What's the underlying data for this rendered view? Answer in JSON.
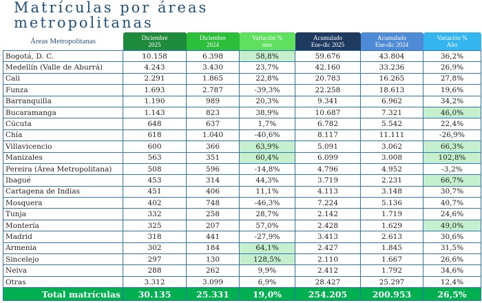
{
  "title_line1": "Matrículas por áreas",
  "title_line2": "metropolitanas",
  "headers": [
    {
      "l1": "Áreas Metropolitanas",
      "l2": "",
      "color": "#ffffff"
    },
    {
      "l1": "Diciembre",
      "l2": "2025",
      "color": "#1e8a3c"
    },
    {
      "l1": "Diciembre",
      "l2": "2024",
      "color": "#2bbf3a"
    },
    {
      "l1": "Variación %",
      "l2": "mes",
      "color": "#5fe05f"
    },
    {
      "l1": "Acumulado",
      "l2": "Ene-dic 2025",
      "color": "#1f3a5f"
    },
    {
      "l1": "Acumulado",
      "l2": "Ene-dic 2024",
      "color": "#4f8ad6"
    },
    {
      "l1": "Variación %",
      "l2": "Año",
      "color": "#33b5f0"
    }
  ],
  "rows": [
    [
      "Bogotá, D. C.",
      "10.158",
      "6.398",
      "58,8%",
      "59.676",
      "43.804",
      "36,2%"
    ],
    [
      "Medellín (Valle de Aburrá)",
      "4.243",
      "3.430",
      "23,7%",
      "42.160",
      "33.236",
      "26,9%"
    ],
    [
      "Cali",
      "2.291",
      "1.865",
      "22,8%",
      "20.783",
      "16.265",
      "27,8%"
    ],
    [
      "Funza",
      "1.693",
      "2.787",
      "-39,3%",
      "22.258",
      "18.613",
      "19,6%"
    ],
    [
      "Barranquilla",
      "1.190",
      "989",
      "20,3%",
      "9.341",
      "6.962",
      "34,2%"
    ],
    [
      "Bucaramanga",
      "1.143",
      "823",
      "38,9%",
      "10.687",
      "7.321",
      "46,0%"
    ],
    [
      "Cúcuta",
      "648",
      "637",
      "1,7%",
      "6.782",
      "5.542",
      "22,4%"
    ],
    [
      "Chía",
      "618",
      "1.040",
      "-40,6%",
      "8.117",
      "11.111",
      "-26,9%"
    ],
    [
      "Villavicencio",
      "600",
      "366",
      "63,9%",
      "5.091",
      "3.062",
      "66,3%"
    ],
    [
      "Manizales",
      "563",
      "351",
      "60,4%",
      "6.099",
      "3.008",
      "102,8%"
    ],
    [
      "Pereira (Área Metropolitana)",
      "508",
      "596",
      "-14,8%",
      "4.796",
      "4.952",
      "-3,2%"
    ],
    [
      "Ibagué",
      "453",
      "314",
      "44,3%",
      "3.719",
      "2.231",
      "66,7%"
    ],
    [
      "Cartagena de Indias",
      "451",
      "406",
      "11,1%",
      "4.113",
      "3.148",
      "30,7%"
    ],
    [
      "Mosquera",
      "402",
      "748",
      "-46,3%",
      "7.224",
      "5.136",
      "40,7%"
    ],
    [
      "Tunja",
      "332",
      "258",
      "28,7%",
      "2.142",
      "1.719",
      "24,6%"
    ],
    [
      "Montería",
      "325",
      "207",
      "57,0%",
      "2.428",
      "1.629",
      "49,0%"
    ],
    [
      "Madrid",
      "318",
      "441",
      "-27,9%",
      "3.413",
      "2.613",
      "30,6%"
    ],
    [
      "Armenia",
      "302",
      "184",
      "64,1%",
      "2.427",
      "1.845",
      "31,5%"
    ],
    [
      "Sincelejo",
      "297",
      "130",
      "128,5%",
      "2.110",
      "1.667",
      "26,6%"
    ],
    [
      "Neiva",
      "288",
      "262",
      "9,9%",
      "2.412",
      "1.792",
      "34,6%"
    ],
    [
      "Otras",
      "3.312",
      "3.099",
      "6,9%",
      "28.427",
      "25.297",
      "12,4%"
    ]
  ],
  "highlighted": [
    [
      0,
      3
    ],
    [
      5,
      6
    ],
    [
      8,
      3
    ],
    [
      8,
      6
    ],
    [
      9,
      3
    ],
    [
      9,
      6
    ],
    [
      11,
      6
    ],
    [
      15,
      6
    ],
    [
      17,
      3
    ],
    [
      18,
      3
    ]
  ],
  "highlight_color": "#c6efce",
  "total": [
    "Total matrículas",
    "30.135",
    "25.331",
    "19,0%",
    "254.205",
    "200.953",
    "26,5%"
  ],
  "total_color": "#00b050"
}
